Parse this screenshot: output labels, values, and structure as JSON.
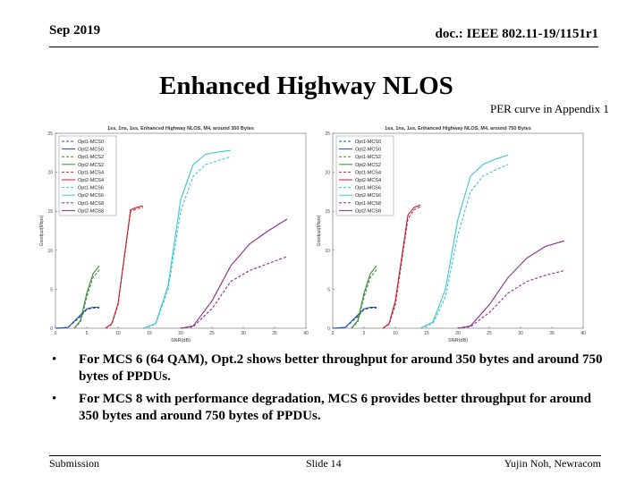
{
  "header": {
    "date": "Sep 2019",
    "doc": "doc.: IEEE 802.11-19/1151r1"
  },
  "title": "Enhanced Highway NLOS",
  "note": "PER curve in Appendix 1",
  "bullets": [
    "For MCS 6 (64 QAM), Opt.2 shows better throughput for around 350 bytes and around 750 bytes of PPDUs.",
    "For MCS 8 with performance degradation, MCS 6 provides better throughput for around 350 bytes and around 750 bytes of PPDUs."
  ],
  "footer": {
    "left": "Submission",
    "mid": "Slide 14",
    "right": "Yujin Noh, Newracom"
  },
  "colors": {
    "mcs0": "#1f4e9e",
    "mcs2": "#3a8a3a",
    "mcs4": "#c0202a",
    "mcs6": "#3cc4d4",
    "mcs8": "#8a2a8a"
  },
  "chart_data": [
    {
      "type": "line",
      "title": "1ss, 1ns, 1ss, Enhanced Highway NLOS, M4, around 350 Bytes",
      "xlabel": "SNR(dB)",
      "ylabel": "Goodput(Mbps)",
      "xlim": [
        0,
        40
      ],
      "ylim": [
        0,
        25
      ],
      "xticks": [
        0,
        5,
        10,
        15,
        20,
        25,
        30,
        35,
        40
      ],
      "yticks": [
        0,
        5,
        10,
        15,
        20,
        25
      ],
      "legend_position": "top-left",
      "series": [
        {
          "name": "Opt1-MCS0",
          "color_key": "mcs0",
          "dash": true,
          "x": [
            0,
            2,
            4,
            5,
            6,
            7
          ],
          "y": [
            0,
            0.1,
            1.5,
            2.4,
            2.6,
            2.6
          ]
        },
        {
          "name": "Opt2-MCS0",
          "color_key": "mcs0",
          "dash": false,
          "x": [
            0,
            2,
            4,
            5,
            6,
            7
          ],
          "y": [
            0,
            0.1,
            1.7,
            2.5,
            2.7,
            2.7
          ]
        },
        {
          "name": "Opt1-MCS2",
          "color_key": "mcs2",
          "dash": true,
          "x": [
            3,
            4,
            5,
            6,
            7
          ],
          "y": [
            0,
            0.8,
            4,
            6.5,
            7.5
          ]
        },
        {
          "name": "Opt2-MCS2",
          "color_key": "mcs2",
          "dash": false,
          "x": [
            3,
            4,
            5,
            6,
            7
          ],
          "y": [
            0,
            1,
            4.5,
            7,
            8
          ]
        },
        {
          "name": "Opt1-MCS4",
          "color_key": "mcs4",
          "dash": true,
          "x": [
            8,
            9,
            10,
            12,
            13,
            14
          ],
          "y": [
            0,
            0.5,
            3,
            15,
            15.3,
            15.5
          ]
        },
        {
          "name": "Opt2-MCS4",
          "color_key": "mcs4",
          "dash": false,
          "x": [
            8,
            9,
            10,
            12,
            13,
            14
          ],
          "y": [
            0,
            0.6,
            3.2,
            15.2,
            15.5,
            15.7
          ]
        },
        {
          "name": "Opt1-MCS6",
          "color_key": "mcs6",
          "dash": true,
          "x": [
            14,
            16,
            18,
            20,
            22,
            24,
            26,
            28
          ],
          "y": [
            0,
            0.5,
            5,
            15,
            19.5,
            21,
            21.5,
            22
          ]
        },
        {
          "name": "Opt2-MCS6",
          "color_key": "mcs6",
          "dash": false,
          "x": [
            14,
            16,
            18,
            20,
            22,
            24,
            26,
            28
          ],
          "y": [
            0,
            0.6,
            5.5,
            16.5,
            21,
            22.3,
            22.6,
            22.8
          ]
        },
        {
          "name": "Opt1-MCS8",
          "color_key": "mcs8",
          "dash": true,
          "x": [
            20,
            22,
            25,
            28,
            31,
            34,
            37
          ],
          "y": [
            0,
            0.2,
            2.5,
            6,
            7.4,
            8.3,
            9.2
          ]
        },
        {
          "name": "Opt2-MCS8",
          "color_key": "mcs8",
          "dash": false,
          "x": [
            20,
            22,
            25,
            28,
            31,
            34,
            37
          ],
          "y": [
            0,
            0.3,
            3.5,
            8,
            10.8,
            12.5,
            14
          ]
        }
      ]
    },
    {
      "type": "line",
      "title": "1ss, 1ns, 1ss, Enhanced Highway NLOS, M4, around 750 Bytes",
      "xlabel": "SNR(dB)",
      "ylabel": "Goodput(Mbps)",
      "xlim": [
        0,
        40
      ],
      "ylim": [
        0,
        25
      ],
      "xticks": [
        0,
        5,
        10,
        15,
        20,
        25,
        30,
        35,
        40
      ],
      "yticks": [
        0,
        5,
        10,
        15,
        20,
        25
      ],
      "legend_position": "top-left",
      "series": [
        {
          "name": "Opt1-MCS0",
          "color_key": "mcs0",
          "dash": true,
          "x": [
            0,
            2,
            4,
            5,
            6,
            7
          ],
          "y": [
            0,
            0.1,
            1.5,
            2.4,
            2.6,
            2.6
          ]
        },
        {
          "name": "Opt2-MCS0",
          "color_key": "mcs0",
          "dash": false,
          "x": [
            0,
            2,
            4,
            5,
            6,
            7
          ],
          "y": [
            0,
            0.1,
            1.7,
            2.5,
            2.7,
            2.7
          ]
        },
        {
          "name": "Opt1-MCS2",
          "color_key": "mcs2",
          "dash": true,
          "x": [
            3,
            4,
            5,
            6,
            7
          ],
          "y": [
            0,
            0.8,
            4,
            6.5,
            7.5
          ]
        },
        {
          "name": "Opt2-MCS2",
          "color_key": "mcs2",
          "dash": false,
          "x": [
            3,
            4,
            5,
            6,
            7
          ],
          "y": [
            0,
            1,
            4.5,
            7,
            8
          ]
        },
        {
          "name": "Opt1-MCS4",
          "color_key": "mcs4",
          "dash": true,
          "x": [
            8,
            9,
            10,
            12,
            13,
            14
          ],
          "y": [
            0,
            0.5,
            3,
            14,
            15.2,
            15.6
          ]
        },
        {
          "name": "Opt2-MCS4",
          "color_key": "mcs4",
          "dash": false,
          "x": [
            8,
            9,
            10,
            12,
            13,
            14
          ],
          "y": [
            0,
            0.6,
            3.5,
            14.5,
            15.5,
            15.8
          ]
        },
        {
          "name": "Opt1-MCS6",
          "color_key": "mcs6",
          "dash": true,
          "x": [
            14,
            16,
            18,
            20,
            22,
            24,
            26,
            28
          ],
          "y": [
            0,
            0.6,
            4,
            12,
            17.5,
            19.5,
            20.3,
            21
          ]
        },
        {
          "name": "Opt2-MCS6",
          "color_key": "mcs6",
          "dash": false,
          "x": [
            14,
            16,
            18,
            20,
            22,
            24,
            26,
            28
          ],
          "y": [
            0,
            0.8,
            5,
            14,
            19.5,
            21,
            21.7,
            22.2
          ]
        },
        {
          "name": "Opt1-MCS8",
          "color_key": "mcs8",
          "dash": true,
          "x": [
            20,
            22,
            25,
            28,
            31,
            34,
            37
          ],
          "y": [
            0,
            0.2,
            2,
            4.5,
            6,
            6.8,
            7.4
          ]
        },
        {
          "name": "Opt2-MCS8",
          "color_key": "mcs8",
          "dash": false,
          "x": [
            20,
            22,
            25,
            28,
            31,
            34,
            37
          ],
          "y": [
            0,
            0.3,
            3,
            6.5,
            9,
            10.5,
            11.2
          ]
        }
      ]
    }
  ]
}
